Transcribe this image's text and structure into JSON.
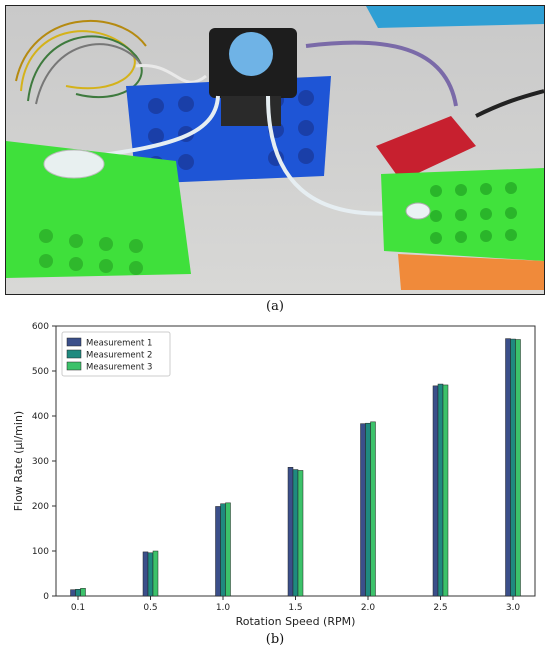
{
  "captions": {
    "a": "(a)",
    "b": "(b)"
  },
  "figure_a": {
    "description_icon": "peristaltic-pump-photo"
  },
  "chart_data": {
    "type": "bar",
    "xlabel": "Rotation Speed (RPM)",
    "ylabel": "Flow Rate (µl/min)",
    "categories": [
      "0.1",
      "0.5",
      "1.0",
      "1.5",
      "2.0",
      "2.5",
      "3.0"
    ],
    "ylim": [
      0,
      600
    ],
    "yticks": [
      0,
      100,
      200,
      300,
      400,
      500,
      600
    ],
    "legend_position": "top-left",
    "series": [
      {
        "name": "Measurement 1",
        "color": "#3b4f8a",
        "values": [
          14,
          98,
          199,
          286,
          383,
          467,
          572
        ]
      },
      {
        "name": "Measurement 2",
        "color": "#1f8a7f",
        "values": [
          15,
          96,
          205,
          281,
          384,
          471,
          571
        ]
      },
      {
        "name": "Measurement 3",
        "color": "#3cc26a",
        "values": [
          17,
          100,
          207,
          279,
          387,
          469,
          570
        ]
      }
    ]
  }
}
